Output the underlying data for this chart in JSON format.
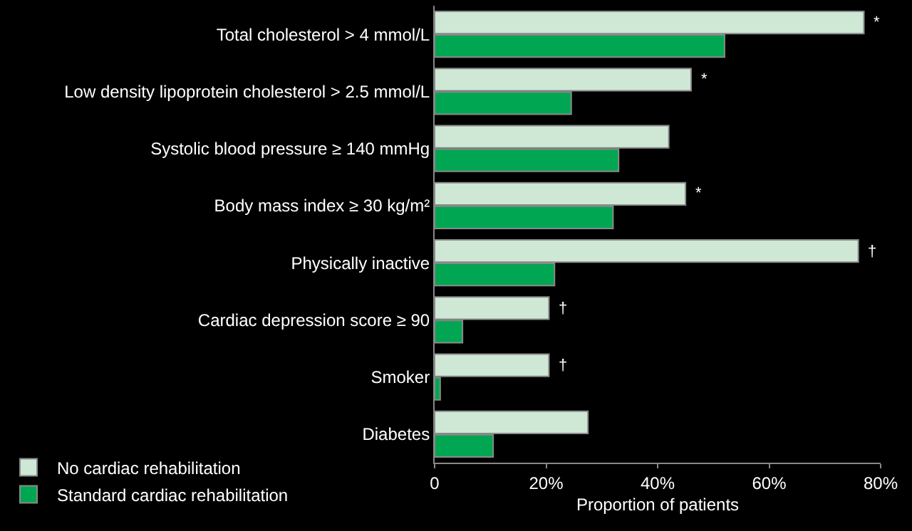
{
  "chart_data": {
    "type": "bar",
    "orientation": "horizontal",
    "xlabel": "Proportion of patients",
    "categories": [
      "Total cholesterol > 4 mmol/L",
      "Low density lipoprotein cholesterol > 2.5 mmol/L",
      "Systolic blood pressure ≥ 140 mmHg",
      "Body mass index ≥ 30 kg/m²",
      "Physically inactive",
      "Cardiac depression score ≥ 90",
      "Smoker",
      "Diabetes"
    ],
    "series": [
      {
        "name": "No cardiac rehabilitation",
        "color": "#cfe8d6",
        "values": [
          77,
          46,
          42,
          45,
          76,
          20.5,
          20.5,
          27.5
        ]
      },
      {
        "name": "Standard cardiac rehabilitation",
        "color": "#00a651",
        "values": [
          52,
          24.5,
          33,
          32,
          21.5,
          5,
          1,
          10.5
        ]
      }
    ],
    "xlim": [
      0,
      80
    ],
    "xticks": [
      0,
      {
        "value": 20,
        "label": "20%"
      },
      {
        "value": 40,
        "label": "40%"
      },
      {
        "value": 60,
        "label": "60%"
      },
      {
        "value": 80,
        "label": "80%"
      }
    ],
    "grid": false,
    "legend": "bottom left",
    "annotations": [
      {
        "text": "*",
        "x": 77,
        "y": "Total cholesterol > 4 mmol/L"
      },
      {
        "text": "*",
        "x": 46,
        "y": "Low density lipoprotein cholesterol > 2.5 mmol/L"
      },
      {
        "text": "*",
        "x": 45,
        "y": "Body mass index ≥ 30 kg/m²"
      },
      {
        "text": "†",
        "x": 76,
        "y": "Physically inactive"
      },
      {
        "text": "†",
        "x": 20.5,
        "y": "Cardiac depression score ≥ 90"
      },
      {
        "text": "†",
        "x": 20.5,
        "y": "Smoker"
      }
    ]
  }
}
